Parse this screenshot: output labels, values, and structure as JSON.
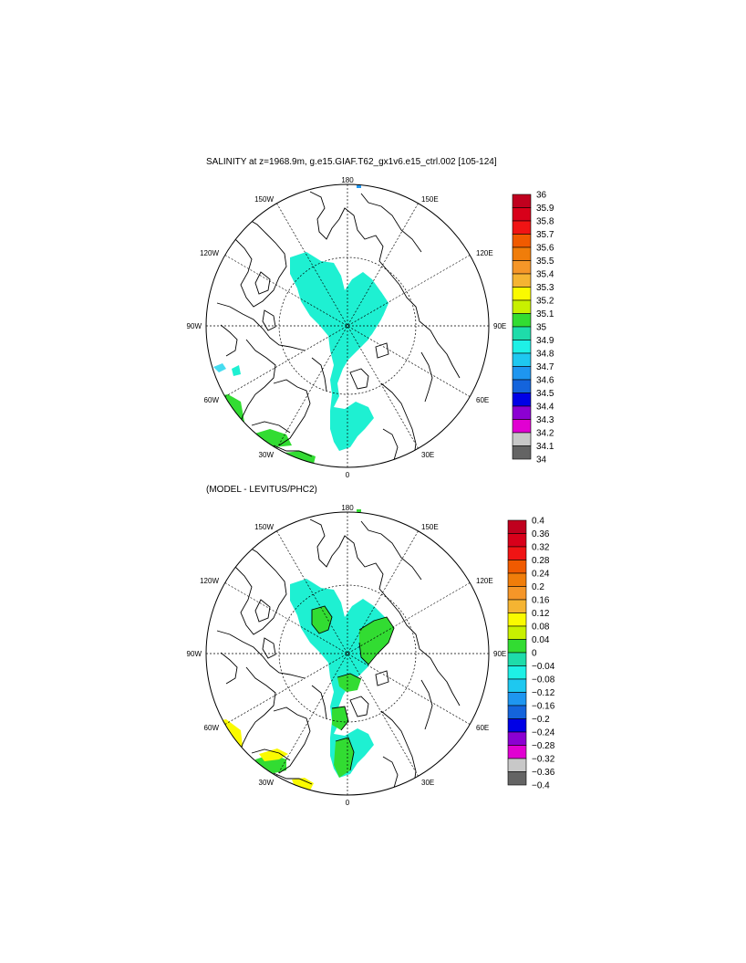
{
  "panels": [
    {
      "title": "SALINITY at z=1968.9m, g.e15.GIAF.T62_gx1v6.e15_ctrl.002 [105-124]",
      "lon_labels": [
        "180",
        "150E",
        "120E",
        "90E",
        "60E",
        "30E",
        "0",
        "30W",
        "60W",
        "90W",
        "120W",
        "150W"
      ],
      "colorbar": {
        "labels": [
          "36",
          "35.9",
          "35.8",
          "35.7",
          "35.6",
          "35.5",
          "35.4",
          "35.3",
          "35.2",
          "35.1",
          "35",
          "34.9",
          "34.8",
          "34.7",
          "34.6",
          "34.5",
          "34.4",
          "34.3",
          "34.2",
          "34.1",
          "34"
        ],
        "colors": [
          "#c0001e",
          "#d8001a",
          "#f01414",
          "#f05a00",
          "#f07d0a",
          "#f59628",
          "#f5b432",
          "#fafa00",
          "#c8f000",
          "#32dc32",
          "#1edcaa",
          "#1ef0e6",
          "#1ec8f0",
          "#1e96f0",
          "#1464dc",
          "#0000e6",
          "#8c00d2",
          "#e100d2",
          "#c8c8c8",
          "#646464"
        ]
      }
    },
    {
      "title": "(MODEL - LEVITUS/PHC2)",
      "lon_labels": [
        "180",
        "150E",
        "120E",
        "90E",
        "60E",
        "30E",
        "0",
        "30W",
        "60W",
        "90W",
        "120W",
        "150W"
      ],
      "colorbar": {
        "labels": [
          "0.4",
          "0.36",
          "0.32",
          "0.28",
          "0.24",
          "0.2",
          "0.16",
          "0.12",
          "0.08",
          "0.04",
          "0",
          "−0.04",
          "−0.08",
          "−0.12",
          "−0.16",
          "−0.2",
          "−0.24",
          "−0.28",
          "−0.32",
          "−0.36",
          "−0.4"
        ],
        "colors": [
          "#c0001e",
          "#d8001a",
          "#f01414",
          "#f05a00",
          "#f07d0a",
          "#f59628",
          "#f5b432",
          "#fafa00",
          "#c8f000",
          "#32dc32",
          "#1edcaa",
          "#1ef0e6",
          "#1ec8f0",
          "#1e96f0",
          "#1464dc",
          "#0000e6",
          "#8c00d2",
          "#e100d2",
          "#c8c8c8",
          "#646464"
        ]
      }
    }
  ]
}
